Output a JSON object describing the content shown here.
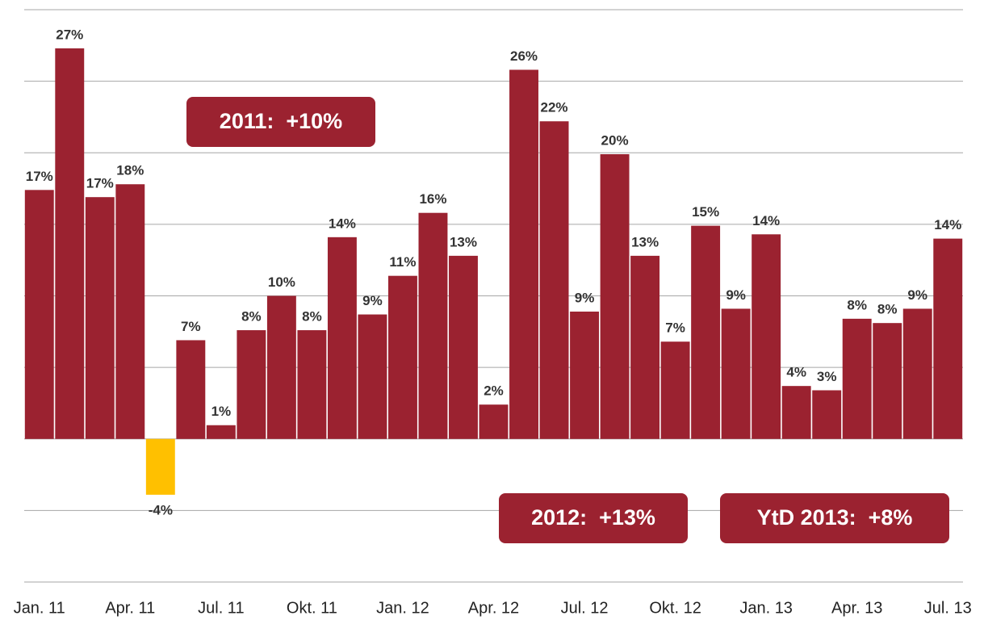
{
  "chart_data": {
    "type": "bar",
    "categories": [
      "Jan. 11",
      null,
      null,
      "Apr. 11",
      null,
      null,
      "Jul. 11",
      null,
      null,
      "Okt. 11",
      null,
      null,
      "Jan. 12",
      null,
      null,
      "Apr. 12",
      null,
      null,
      "Jul. 12",
      null,
      null,
      "Okt. 12",
      null,
      null,
      "Jan. 13",
      null,
      null,
      "Apr. 13",
      null,
      null,
      "Jul. 13"
    ],
    "values": [
      17.4,
      27.3,
      16.9,
      17.8,
      -3.9,
      6.9,
      0.96,
      7.6,
      10.0,
      7.6,
      14.1,
      8.7,
      11.4,
      15.8,
      12.8,
      2.4,
      25.8,
      22.2,
      8.9,
      19.9,
      12.8,
      6.8,
      14.9,
      9.1,
      14.3,
      3.7,
      3.4,
      8.4,
      8.1,
      9.1,
      14.0
    ],
    "value_labels": [
      "17%",
      "27%",
      "17%",
      "18%",
      "-4%",
      "7%",
      "1%",
      "8%",
      "10%",
      "8%",
      "14%",
      "9%",
      "11%",
      "16%",
      "13%",
      "2%",
      "26%",
      "22%",
      "9%",
      "20%",
      "13%",
      "7%",
      "15%",
      "9%",
      "14%",
      "4%",
      "3%",
      "8%",
      "8%",
      "9%",
      "14%"
    ],
    "color": "#9b2230",
    "negative_color": "#ffc000",
    "ylim": [
      -10,
      30
    ],
    "yticks": [
      -10,
      -5,
      0,
      5,
      10,
      15,
      20,
      25,
      30
    ],
    "grid": true,
    "annotations": [
      "2011:  +10%",
      "2012:  +13%",
      "YtD 2013:  +8%"
    ]
  }
}
